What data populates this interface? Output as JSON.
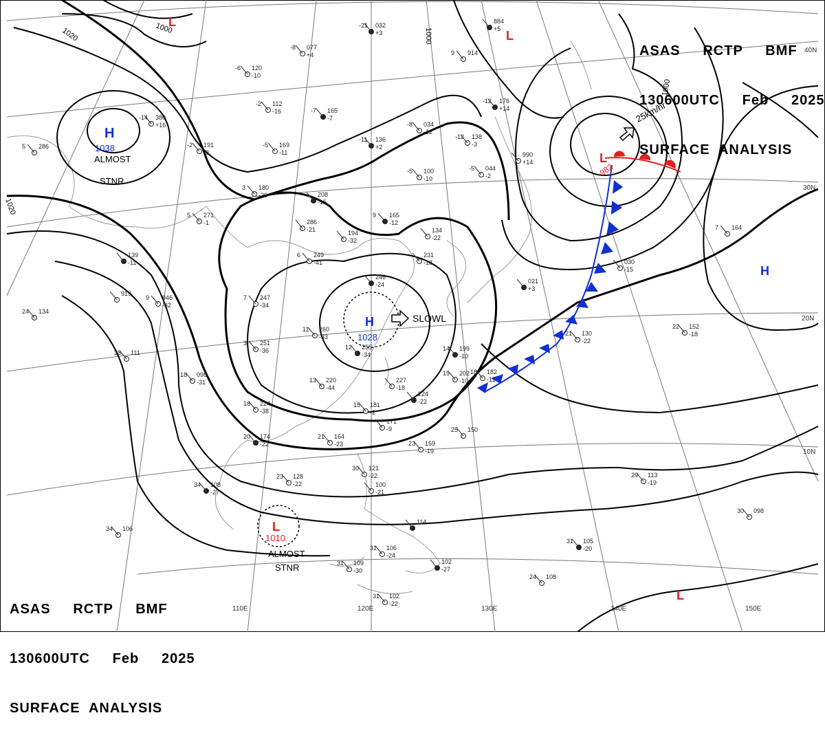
{
  "header": {
    "line1": "ASAS     RCTP     BMF",
    "line2": "130600UTC     Feb     2025",
    "line3": "SURFACE  ANALYSIS"
  },
  "longitudes": [
    "110E",
    "120E",
    "130E",
    "140E",
    "150E"
  ],
  "latitudes": [
    "40N",
    "30N",
    "20N",
    "10N"
  ],
  "isobars": [
    "1000",
    "1020",
    "1020",
    "1000",
    "1000"
  ],
  "systems": [
    {
      "type": "H",
      "pressure": "1038",
      "note1": "ALMOST",
      "note2": "STNR",
      "color": "#1030d0"
    },
    {
      "type": "H",
      "pressure": "1028",
      "note1": "SLOWL",
      "color": "#1030d0"
    },
    {
      "type": "L",
      "pressure": "982",
      "motion": "25km/hr",
      "color": "#e02020"
    },
    {
      "type": "L",
      "pressure": "1010",
      "note1": "ALMOST",
      "note2": "STNR",
      "color": "#e02020"
    },
    {
      "type": "H",
      "color": "#1030d0"
    },
    {
      "type": "L",
      "color": "#e02020"
    },
    {
      "type": "L",
      "color": "#e02020"
    },
    {
      "type": "L",
      "color": "#e02020"
    }
  ],
  "colors": {
    "isobar": "#000000",
    "grid": "#777777",
    "coast": "#888888",
    "high": "#1030d0",
    "low": "#e02020",
    "cold_front": "#1030d0",
    "warm_front": "#e02020"
  },
  "stations": [
    {
      "t1": "-21",
      "p": "032",
      "t2": "+3"
    },
    {
      "t1": "-8",
      "p": "077",
      "t2": "+4"
    },
    {
      "t1": "-6",
      "p": "120",
      "t2": "-10"
    },
    {
      "t1": "-2",
      "p": "112",
      "t2": "-16"
    },
    {
      "t1": "-7",
      "p": "165",
      "t2": "-7"
    },
    {
      "t1": "-5",
      "p": "169",
      "t2": "-11"
    },
    {
      "t1": "-2",
      "p": "191",
      "t2": "-8"
    },
    {
      "t1": "-8",
      "p": "034",
      "t2": "-12"
    },
    {
      "t1": "-11",
      "p": "136",
      "t2": "+2"
    },
    {
      "t1": "-12",
      "p": "138",
      "t2": "-3"
    },
    {
      "t1": "-5",
      "p": "100",
      "t2": "-10"
    },
    {
      "t1": "-5",
      "p": "044",
      "t2": "-2"
    },
    {
      "t1": "-12",
      "p": "176",
      "t2": "+14"
    },
    {
      "t1": "-14",
      "p": "380",
      "t2": "+16"
    },
    {
      "t1": "5",
      "p": "286",
      "t2": ""
    },
    {
      "t1": "3",
      "p": "180",
      "t2": "-29"
    },
    {
      "t1": "",
      "p": "208",
      "t2": "-15"
    },
    {
      "t1": "5",
      "p": "271",
      "t2": "-1"
    },
    {
      "t1": "",
      "p": "286",
      "t2": "-21"
    },
    {
      "t1": "",
      "p": "194",
      "t2": "-32"
    },
    {
      "t1": "9",
      "p": "165",
      "t2": "-12"
    },
    {
      "t1": "",
      "p": "134",
      "t2": "-22"
    },
    {
      "t1": "6",
      "p": "249",
      "t2": "-41"
    },
    {
      "t1": "",
      "p": "231",
      "t2": "-18"
    },
    {
      "t1": "",
      "p": "246",
      "t2": "-24"
    },
    {
      "t1": "7",
      "p": "247",
      "t2": "-34"
    },
    {
      "t1": "9",
      "p": "946",
      "t2": "-32"
    },
    {
      "t1": "",
      "p": "919",
      "t2": ""
    },
    {
      "t1": "",
      "p": "139",
      "t2": "-11"
    },
    {
      "t1": "24",
      "p": "134",
      "t2": ""
    },
    {
      "t1": "11",
      "p": "260",
      "t2": "-33"
    },
    {
      "t1": "3",
      "p": "251",
      "t2": "-36"
    },
    {
      "t1": "12",
      "p": "255",
      "t2": "-34"
    },
    {
      "t1": "28",
      "p": "111",
      "t2": ""
    },
    {
      "t1": "18",
      "p": "098",
      "t2": "-31"
    },
    {
      "t1": "13",
      "p": "220",
      "t2": "-44"
    },
    {
      "t1": "14",
      "p": "199",
      "t2": "-10"
    },
    {
      "t1": "15",
      "p": "202",
      "t2": "-10"
    },
    {
      "t1": "18",
      "p": "182",
      "t2": "-11"
    },
    {
      "t1": "",
      "p": "227",
      "t2": "-18"
    },
    {
      "t1": "",
      "p": "224",
      "t2": "-22"
    },
    {
      "t1": "18",
      "p": "224",
      "t2": "-38"
    },
    {
      "t1": "15",
      "p": "181",
      "t2": "-2"
    },
    {
      "t1": "",
      "p": "171",
      "t2": "-9"
    },
    {
      "t1": "20",
      "p": "174",
      "t2": "-22"
    },
    {
      "t1": "21",
      "p": "164",
      "t2": "-23"
    },
    {
      "t1": "23",
      "p": "159",
      "t2": "-19"
    },
    {
      "t1": "25",
      "p": "150",
      "t2": ""
    },
    {
      "t1": "34",
      "p": "108",
      "t2": "-27"
    },
    {
      "t1": "23",
      "p": "128",
      "t2": "-22"
    },
    {
      "t1": "30",
      "p": "121",
      "t2": "-22"
    },
    {
      "t1": "",
      "p": "100",
      "t2": "-21"
    },
    {
      "t1": "",
      "p": "114",
      "t2": ""
    },
    {
      "t1": "34",
      "p": "106",
      "t2": ""
    },
    {
      "t1": "31",
      "p": "106",
      "t2": "-24"
    },
    {
      "t1": "31",
      "p": "109",
      "t2": "-30"
    },
    {
      "t1": "",
      "p": "102",
      "t2": "-27"
    },
    {
      "t1": "31",
      "p": "102",
      "t2": "-22"
    },
    {
      "t1": "29",
      "p": "113",
      "t2": "-19"
    },
    {
      "t1": "30",
      "p": "098",
      "t2": ""
    },
    {
      "t1": "31",
      "p": "105",
      "t2": "-20"
    },
    {
      "t1": "24",
      "p": "108",
      "t2": ""
    },
    {
      "t1": "22",
      "p": "152",
      "t2": "-18"
    },
    {
      "t1": "",
      "p": "030",
      "t2": "-15"
    },
    {
      "t1": "",
      "p": "021",
      "t2": "+3"
    },
    {
      "t1": "21",
      "p": "130",
      "t2": "-22"
    },
    {
      "t1": "7",
      "p": "164",
      "t2": ""
    },
    {
      "t1": "",
      "p": "990",
      "t2": "+14"
    },
    {
      "t1": "",
      "p": "884",
      "t2": "+5"
    },
    {
      "t1": "9",
      "p": "914",
      "t2": ""
    }
  ]
}
